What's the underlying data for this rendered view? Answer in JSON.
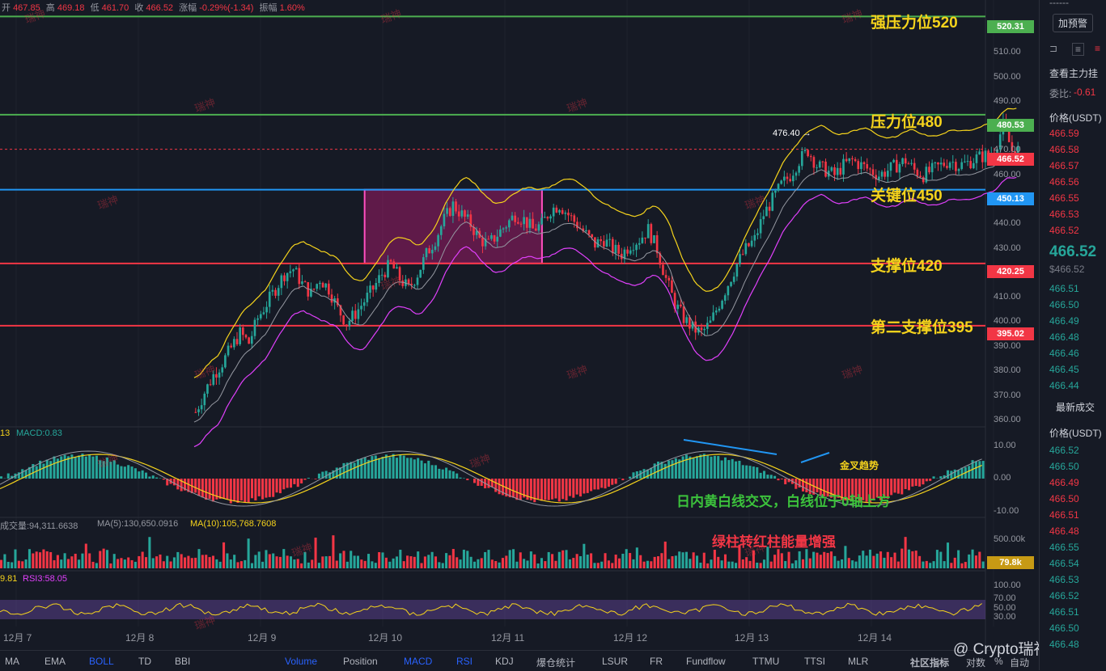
{
  "ohlc": {
    "open_label": "开",
    "open": "467.85",
    "high_label": "高",
    "high": "469.18",
    "low_label": "低",
    "low": "461.70",
    "close_label": "收",
    "close": "466.52",
    "change_label": "涨幅",
    "change": "-0.29%(-1.34)",
    "amp_label": "振幅",
    "amp": "1.60%"
  },
  "levels": [
    {
      "label": "强压力位520",
      "tag": "520.31",
      "value": 520.31,
      "color": "#4caf50"
    },
    {
      "label": "压力位480",
      "tag": "480.53",
      "value": 480.53,
      "color": "#4caf50"
    },
    {
      "label": "关键位450",
      "tag": "450.13",
      "value": 450.13,
      "color": "#2196f3"
    },
    {
      "label": "支撑位420",
      "tag": "420.25",
      "value": 420.25,
      "color": "#f23645"
    },
    {
      "label": "第二支撑位395",
      "tag": "395.02",
      "value": 395.02,
      "color": "#f23645"
    }
  ],
  "current_price_tag": "466.52",
  "high_marker": "476.40 →",
  "price_axis": [
    "510.00",
    "500.00",
    "490.00",
    "470.00",
    "460.00",
    "440.00",
    "430.00",
    "410.00",
    "400.00",
    "390.00",
    "380.00",
    "370.00",
    "360.00"
  ],
  "macd": {
    "label_left": "13",
    "label": "MACD:0.83",
    "axis": [
      "10.00",
      "0.00",
      "-10.00"
    ],
    "annot_trend": "金叉趋势",
    "annot_cross": "日内黄白线交叉，白线位于0轴上方"
  },
  "volume": {
    "label": "成交量:94,311.6638",
    "ma5": "MA(5):130,650.0916",
    "ma10": "MA(10):105,768.7608",
    "axis": "500.00k",
    "tag": "79.8k",
    "annot": "绿柱转红柱能量增强"
  },
  "rsi": {
    "label_left": "9.81",
    "label": "RSI3:58.05",
    "axis": [
      "100.00",
      "70.00",
      "50.00",
      "30.00"
    ]
  },
  "dates": [
    "12月 7",
    "12月 8",
    "12月 9",
    "12月 10",
    "12月 11",
    "12月 12",
    "12月 13",
    "12月 14"
  ],
  "toolbar_left": [
    "MA",
    "EMA",
    "BOLL",
    "TD",
    "BBI"
  ],
  "toolbar_right": [
    "Volume",
    "Position",
    "MACD",
    "RSI",
    "KDJ",
    "爆仓统计",
    "LSUR",
    "FR",
    "Fundflow",
    "TTMU",
    "TTSI",
    "MLR"
  ],
  "toolbar_end": {
    "community": "社区指标",
    "log": "对数",
    "pct": "%",
    "auto": "自动"
  },
  "watermark_brand": "@ Crypto瑞神",
  "watermark_tile": "瑞神",
  "side": {
    "dashes": "------",
    "alert_btn": "加预警",
    "view_main": "查看主力挂",
    "ratio_label": "委比:",
    "ratio_value": "-0.61",
    "price_header": "价格(USDT)",
    "asks": [
      "466.59",
      "466.58",
      "466.57",
      "466.56",
      "466.55",
      "466.53",
      "466.52"
    ],
    "mid_price": "466.52",
    "mid_sub": "$466.52",
    "bids": [
      "466.51",
      "466.50",
      "466.49",
      "466.48",
      "466.46",
      "466.45",
      "466.44"
    ],
    "trades_title": "最新成交",
    "trades_header": "价格(USDT)",
    "trades": [
      {
        "p": "466.52",
        "c": "up"
      },
      {
        "p": "466.50",
        "c": "up"
      },
      {
        "p": "466.49",
        "c": "dn"
      },
      {
        "p": "466.50",
        "c": "dn"
      },
      {
        "p": "466.51",
        "c": "dn"
      },
      {
        "p": "466.48",
        "c": "dn"
      },
      {
        "p": "466.55",
        "c": "up"
      },
      {
        "p": "466.54",
        "c": "up"
      },
      {
        "p": "466.53",
        "c": "up"
      },
      {
        "p": "466.52",
        "c": "up"
      },
      {
        "p": "466.51",
        "c": "up"
      },
      {
        "p": "466.50",
        "c": "up"
      },
      {
        "p": "466.48",
        "c": "up"
      }
    ]
  },
  "chart_data": {
    "type": "candlestick",
    "y_range": [
      355,
      527
    ],
    "box": {
      "x_start": 0.37,
      "x_end": 0.55,
      "y_low": 420.25,
      "y_high": 450.13
    },
    "price_path": [
      360,
      368,
      375,
      380,
      386,
      392,
      388,
      398,
      404,
      410,
      416,
      418,
      412,
      408,
      414,
      410,
      402,
      396,
      400,
      405,
      410,
      416,
      420,
      414,
      410,
      416,
      424,
      430,
      438,
      444,
      440,
      436,
      430,
      428,
      432,
      436,
      440,
      438,
      434,
      436,
      442,
      444,
      440,
      436,
      432,
      428,
      430,
      426,
      424,
      428,
      430,
      434,
      426,
      414,
      404,
      398,
      394,
      392,
      396,
      404,
      412,
      420,
      426,
      430,
      440,
      446,
      452,
      456,
      462,
      466,
      460,
      458,
      456,
      460,
      462,
      460,
      458,
      456,
      458,
      460,
      462,
      458,
      456,
      458,
      460,
      462,
      460,
      461,
      463,
      464,
      466,
      476,
      466
    ]
  }
}
